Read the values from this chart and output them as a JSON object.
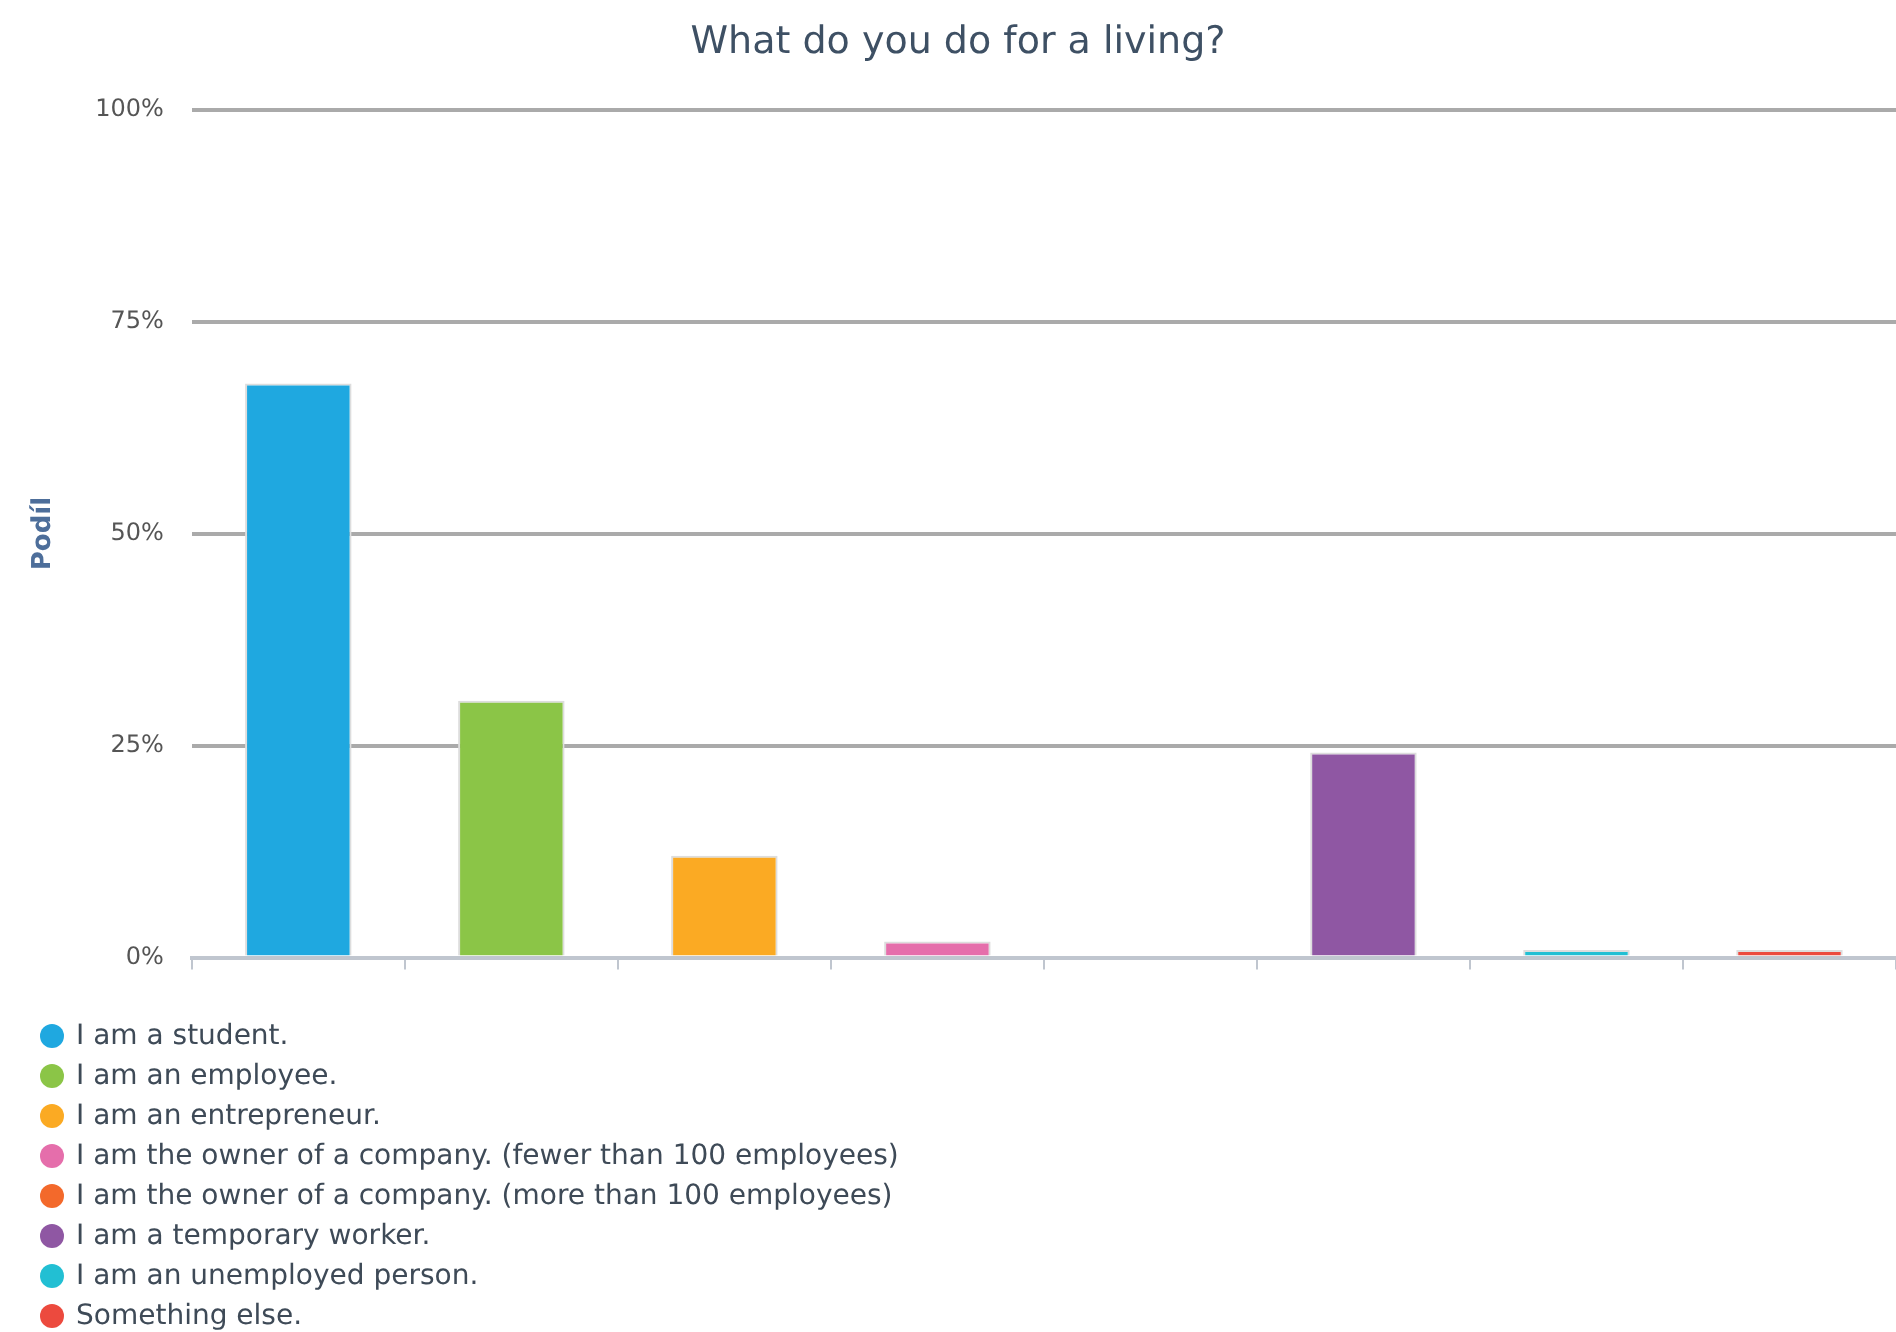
{
  "chart_data": {
    "type": "bar",
    "title": "What do you do for a living?",
    "ylabel": "Podíl",
    "categories": [
      null,
      null,
      null,
      null,
      null,
      null,
      null,
      null
    ],
    "series": [
      {
        "name": "I am a student.",
        "color": "#1fa8e0",
        "values": [
          67.7,
          null,
          null,
          null,
          null,
          null,
          null,
          null
        ]
      },
      {
        "name": "I am an employee.",
        "color": "#8bc547",
        "values": [
          null,
          30.3,
          null,
          null,
          null,
          null,
          null,
          null
        ]
      },
      {
        "name": "I am an entrepreneur.",
        "color": "#fbaa23",
        "values": [
          null,
          null,
          12.0,
          null,
          null,
          null,
          null,
          null
        ]
      },
      {
        "name": "I am the owner of a company. (fewer than 100 employees)",
        "color": "#e56eab",
        "values": [
          null,
          null,
          null,
          1.9,
          null,
          null,
          null,
          null
        ]
      },
      {
        "name": "I am the owner of a company. (more than 100 employees)",
        "color": "#f3692b",
        "values": [
          null,
          null,
          null,
          null,
          0,
          null,
          null,
          null
        ]
      },
      {
        "name": "I am a temporary worker.",
        "color": "#8f57a3",
        "values": [
          null,
          null,
          null,
          null,
          null,
          24.2,
          null,
          null
        ]
      },
      {
        "name": "I am an unemployed person.",
        "color": "#22bfd3",
        "values": [
          null,
          null,
          null,
          null,
          null,
          null,
          0.9,
          null
        ]
      },
      {
        "name": "Something else.",
        "color": "#ec4a3e",
        "values": [
          null,
          null,
          null,
          null,
          null,
          null,
          null,
          0.9
        ]
      }
    ],
    "ylim": [
      0,
      100
    ],
    "yticks": [
      {
        "value": 0,
        "label": "0%"
      },
      {
        "value": 25,
        "label": "25%"
      },
      {
        "value": 50,
        "label": "50%"
      },
      {
        "value": 75,
        "label": "75%"
      },
      {
        "value": 100,
        "label": "100%"
      }
    ],
    "grid": "y",
    "legend": "bottom left",
    "tick_labels": "y"
  }
}
